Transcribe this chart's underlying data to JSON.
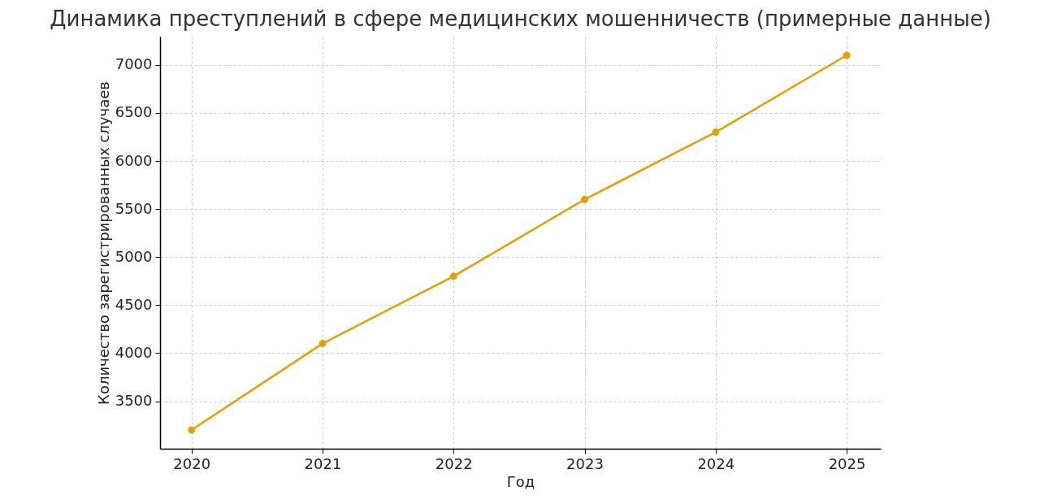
{
  "chart_data": {
    "type": "line",
    "title": "Динамика преступлений в сфере медицинских мошенничеств (примерные данные)",
    "xlabel": "Год",
    "ylabel": "Количество зарегистрированных случаев",
    "x": [
      2020,
      2021,
      2022,
      2023,
      2024,
      2025
    ],
    "series": [
      {
        "color": "#e69f00",
        "values": [
          3200,
          4100,
          4800,
          5600,
          6300,
          7100
        ]
      }
    ],
    "xlim": [
      2019.76,
      2025.26
    ],
    "xticks": [
      2020,
      2021,
      2022,
      2023,
      2024,
      2025
    ],
    "ylim": [
      3005,
      7295
    ],
    "yticks": [
      3500,
      4000,
      4500,
      5000,
      5500,
      6000,
      6500,
      7000
    ],
    "grid": true,
    "marker": "circle",
    "line_style": "solid"
  }
}
